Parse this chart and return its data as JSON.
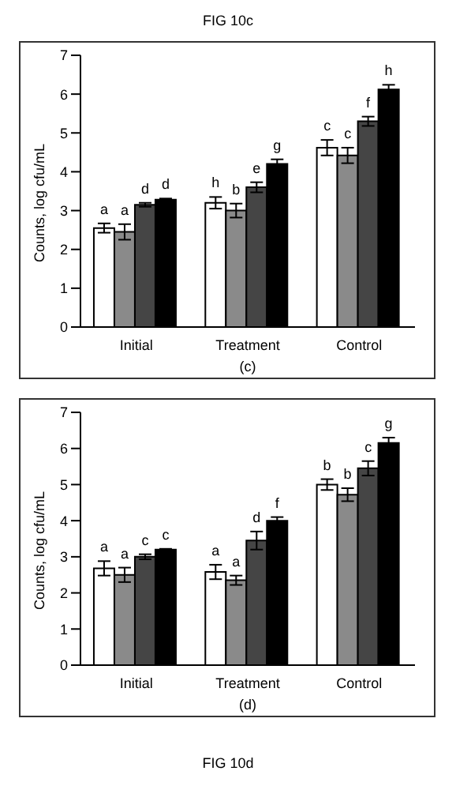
{
  "chart_data": [
    {
      "type": "bar",
      "title": "FIG 10c",
      "xlabel": "(c)",
      "ylabel": "Counts, log cfu/mL",
      "categories": [
        "Initial",
        "Treatment",
        "Control"
      ],
      "ylim": [
        0,
        7
      ],
      "yticks": [
        0,
        1,
        2,
        3,
        4,
        5,
        6,
        7
      ],
      "grid": false,
      "legend": false,
      "series": [
        {
          "color": "#ffffff",
          "values": [
            2.55,
            3.2,
            4.62
          ],
          "errors": [
            0.12,
            0.15,
            0.2
          ],
          "value_labels": [
            "a",
            "h",
            "c"
          ]
        },
        {
          "color": "#8a8a8a",
          "values": [
            2.45,
            3.0,
            4.42
          ],
          "errors": [
            0.2,
            0.18,
            0.2
          ],
          "value_labels": [
            "a",
            "b",
            "c"
          ]
        },
        {
          "color": "#454545",
          "values": [
            3.15,
            3.6,
            5.3
          ],
          "errors": [
            0.05,
            0.13,
            0.12
          ],
          "value_labels": [
            "d",
            "e",
            "f"
          ]
        },
        {
          "color": "#000000",
          "values": [
            3.28,
            4.2,
            6.12
          ],
          "errors": [
            0.03,
            0.12,
            0.12
          ],
          "value_labels": [
            "d",
            "g",
            "h"
          ]
        }
      ]
    },
    {
      "type": "bar",
      "xlabel": "(d)",
      "ylabel": "Counts, log cfu/mL",
      "categories": [
        "Initial",
        "Treatment",
        "Control"
      ],
      "ylim": [
        0,
        7
      ],
      "yticks": [
        0,
        1,
        2,
        3,
        4,
        5,
        6,
        7
      ],
      "grid": false,
      "legend": false,
      "series": [
        {
          "color": "#ffffff",
          "values": [
            2.68,
            2.58,
            5.0
          ],
          "errors": [
            0.2,
            0.2,
            0.15
          ],
          "value_labels": [
            "a",
            "a",
            "b"
          ]
        },
        {
          "color": "#8a8a8a",
          "values": [
            2.5,
            2.35,
            4.72
          ],
          "errors": [
            0.2,
            0.13,
            0.18
          ],
          "value_labels": [
            "a",
            "a",
            "b"
          ]
        },
        {
          "color": "#454545",
          "values": [
            3.0,
            3.45,
            5.45
          ],
          "errors": [
            0.07,
            0.25,
            0.2
          ],
          "value_labels": [
            "c",
            "d",
            "c"
          ]
        },
        {
          "color": "#000000",
          "values": [
            3.2,
            4.0,
            6.15
          ],
          "errors": [
            0.02,
            0.1,
            0.15
          ],
          "value_labels": [
            "c",
            "f",
            "g"
          ]
        }
      ],
      "annotations": [
        "FIG 10d"
      ]
    }
  ]
}
